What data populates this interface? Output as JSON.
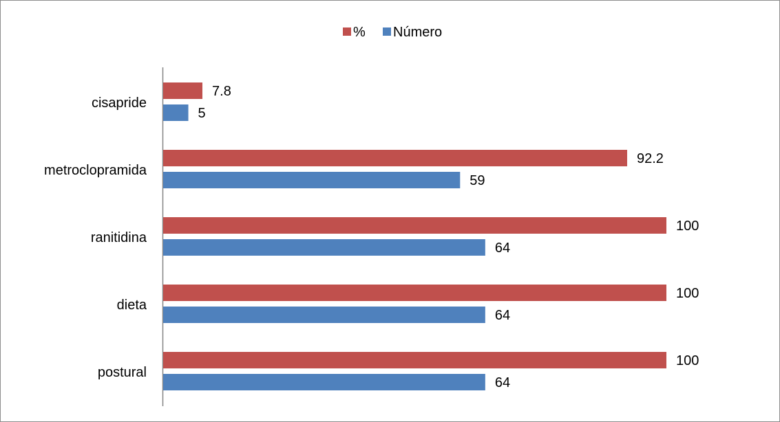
{
  "chart_data": {
    "type": "bar",
    "orientation": "horizontal",
    "categories": [
      "cisapride",
      "metroclopramida",
      "ranitidina",
      "dieta",
      "postural"
    ],
    "series": [
      {
        "name": "%",
        "values": [
          7.8,
          92.2,
          100,
          100,
          100
        ],
        "color": "#C0504D"
      },
      {
        "name": "Número",
        "values": [
          5,
          59,
          64,
          64,
          64
        ],
        "color": "#4F81BD"
      }
    ],
    "title": "",
    "xlabel": "",
    "ylabel": "",
    "xlim": [
      0,
      100
    ],
    "grid": false,
    "legend_position": "top",
    "data_labels": true
  }
}
